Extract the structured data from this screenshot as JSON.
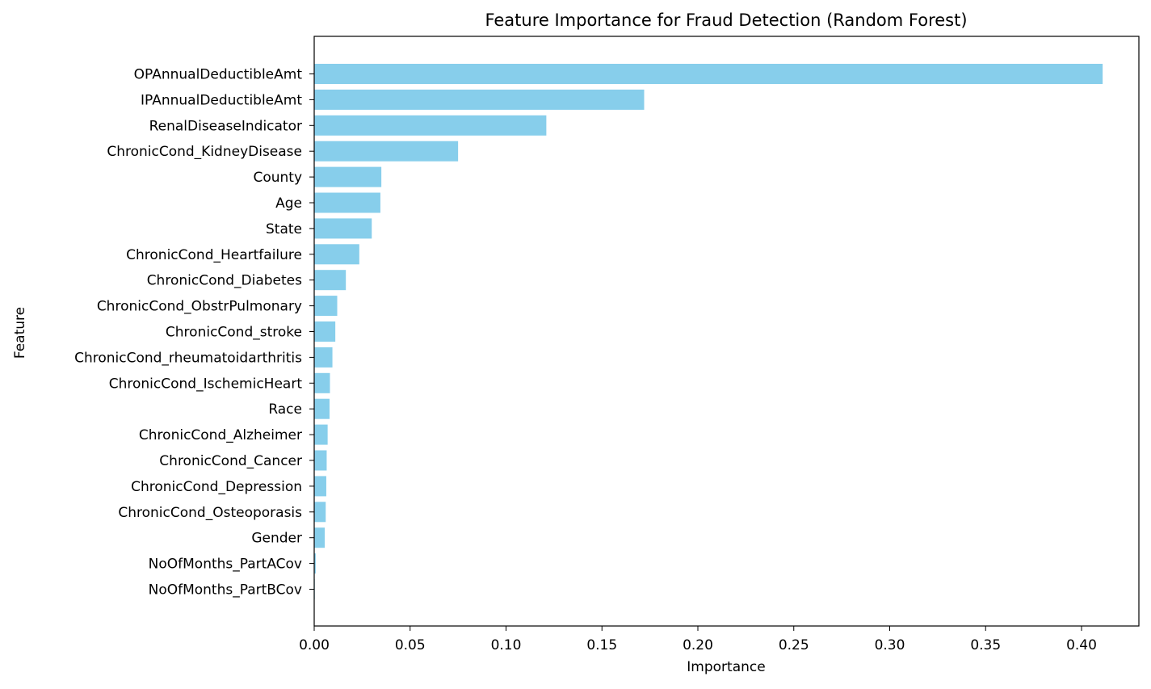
{
  "chart_data": {
    "type": "bar",
    "orientation": "horizontal",
    "title": "Feature Importance for Fraud Detection (Random Forest)",
    "xlabel": "Importance",
    "ylabel": "Feature",
    "xlim": [
      0,
      0.43
    ],
    "xticks": [
      0.0,
      0.05,
      0.1,
      0.15,
      0.2,
      0.25,
      0.3,
      0.35,
      0.4
    ],
    "xtick_labels": [
      "0.00",
      "0.05",
      "0.10",
      "0.15",
      "0.20",
      "0.25",
      "0.30",
      "0.35",
      "0.40"
    ],
    "grid": false,
    "bar_color": "#87ceeb",
    "categories": [
      "OPAnnualDeductibleAmt",
      "IPAnnualDeductibleAmt",
      "RenalDiseaseIndicator",
      "ChronicCond_KidneyDisease",
      "County",
      "Age",
      "State",
      "ChronicCond_Heartfailure",
      "ChronicCond_Diabetes",
      "ChronicCond_ObstrPulmonary",
      "ChronicCond_stroke",
      "ChronicCond_rheumatoidarthritis",
      "ChronicCond_IschemicHeart",
      "Race",
      "ChronicCond_Alzheimer",
      "ChronicCond_Cancer",
      "ChronicCond_Depression",
      "ChronicCond_Osteoporasis",
      "Gender",
      "NoOfMonths_PartACov",
      "NoOfMonths_PartBCov"
    ],
    "values": [
      0.411,
      0.172,
      0.121,
      0.075,
      0.035,
      0.0345,
      0.03,
      0.0235,
      0.0165,
      0.012,
      0.011,
      0.0095,
      0.0082,
      0.008,
      0.007,
      0.0065,
      0.0063,
      0.006,
      0.0055,
      0.0008,
      0.0003
    ]
  }
}
